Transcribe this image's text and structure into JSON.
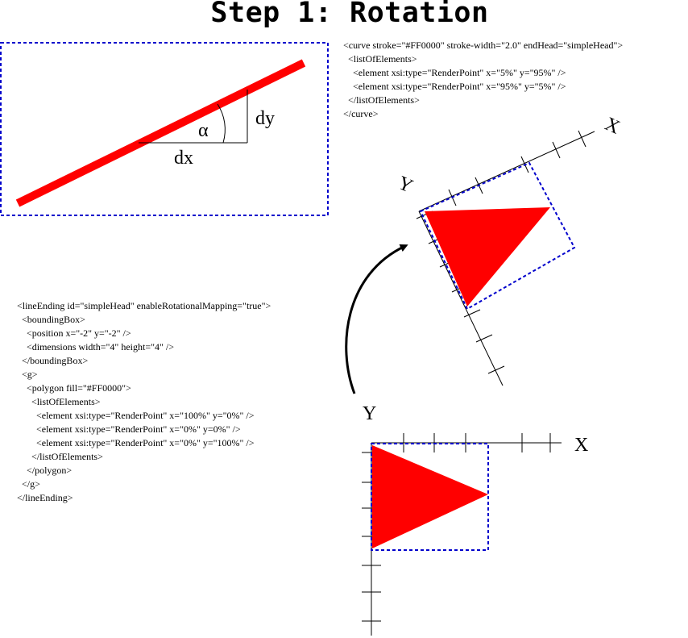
{
  "title": "Step 1: Rotation",
  "curve_code": [
    "<curve stroke=\"#FF0000\" stroke-width=\"2.0\" endHead=\"simpleHead\">",
    "  <listOfElements>",
    "    <element xsi:type=\"RenderPoint\" x=\"5%\" y=\"95%\" />",
    "    <element xsi:type=\"RenderPoint\" x=\"95%\" y=\"5%\" />",
    "  </listOfElements>",
    "</curve>"
  ],
  "lineending_code": [
    "<lineEnding id=\"simpleHead\" enableRotationalMapping=\"true\">",
    "  <boundingBox>",
    "    <position x=\"-2\" y=\"-2\" />",
    "    <dimensions width=\"4\" height=\"4\" />",
    "  </boundingBox>",
    "  <g>",
    "    <polygon fill=\"#FF0000\">",
    "      <listOfElements>",
    "        <element xsi:type=\"RenderPoint\" x=\"100%\" y=\"0%\" />",
    "        <element xsi:type=\"RenderPoint\" x=\"0%\" y=0%\" />",
    "        <element xsi:type=\"RenderPoint\" x=\"0%\" y=\"100%\" />",
    "      </listOfElements>",
    "    </polygon>",
    "  </g>",
    "</lineEnding>"
  ],
  "labels": {
    "alpha": "α",
    "dx": "dx",
    "dy": "dy",
    "x_axis": "X",
    "y_axis": "Y"
  },
  "colors": {
    "shape": "#ff0000",
    "bbox": "#0000cc",
    "ink": "#000000"
  }
}
